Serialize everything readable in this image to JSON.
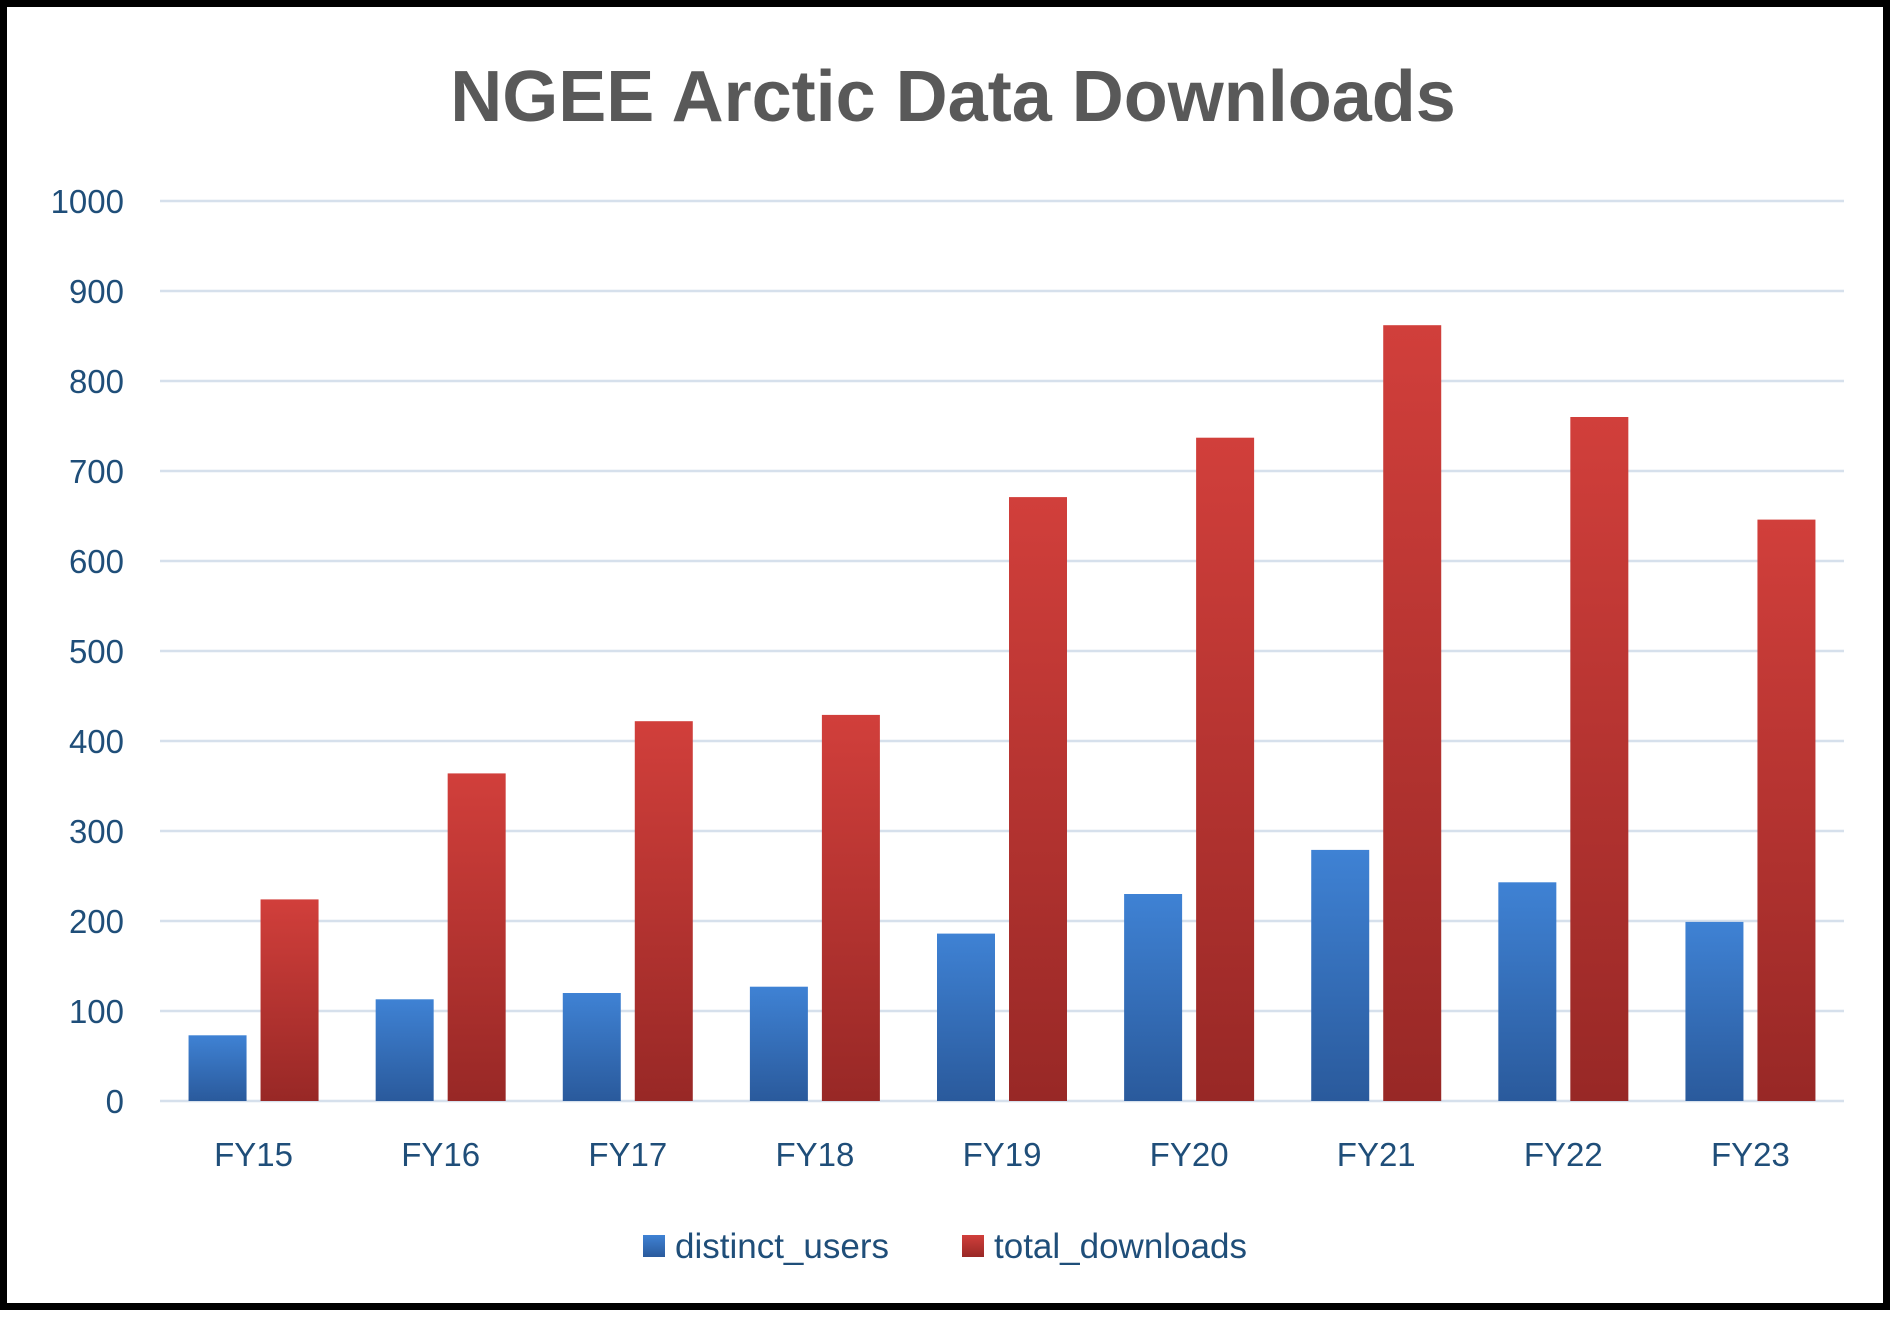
{
  "chart_data": {
    "type": "bar",
    "title": "NGEE Arctic Data Downloads",
    "xlabel": "",
    "ylabel": "",
    "categories": [
      "FY15",
      "FY16",
      "FY17",
      "FY18",
      "FY19",
      "FY20",
      "FY21",
      "FY22",
      "FY23"
    ],
    "series": [
      {
        "name": "distinct_users",
        "values": [
          73,
          113,
          120,
          127,
          186,
          230,
          279,
          243,
          199
        ],
        "color": "#3a78c9"
      },
      {
        "name": "total_downloads",
        "values": [
          224,
          364,
          422,
          429,
          671,
          737,
          862,
          760,
          646
        ],
        "color": "#c23a37"
      }
    ],
    "ylim": [
      0,
      1000
    ],
    "yticks": [
      "0",
      "100",
      "200",
      "300",
      "400",
      "500",
      "600",
      "700",
      "800",
      "900",
      "1000"
    ],
    "grid": true,
    "legend_position": "bottom"
  }
}
